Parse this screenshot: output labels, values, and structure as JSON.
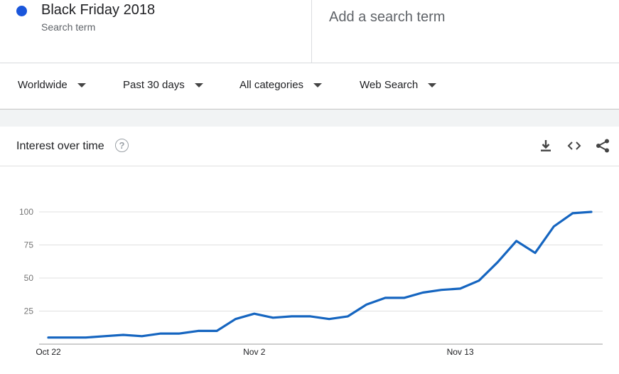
{
  "search_term": {
    "name": "Black Friday 2018",
    "subtitle": "Search term",
    "color": "#1a56db"
  },
  "add_term": {
    "placeholder": "Add a search term"
  },
  "filters": [
    {
      "label": "Worldwide"
    },
    {
      "label": "Past 30 days"
    },
    {
      "label": "All categories"
    },
    {
      "label": "Web Search"
    }
  ],
  "card": {
    "title": "Interest over time",
    "help_glyph": "?",
    "tools": [
      "download-icon",
      "embed-icon",
      "share-icon"
    ]
  },
  "chart_data": {
    "type": "line",
    "title": "",
    "xlabel": "",
    "ylabel": "",
    "ylim": [
      0,
      100
    ],
    "yticks": [
      25,
      50,
      75,
      100
    ],
    "grid": true,
    "line_color": "#1565c0",
    "x_labels": [
      {
        "date": "2018-10-22",
        "label": "Oct 22"
      },
      {
        "date": "2018-11-02",
        "label": "Nov 2"
      },
      {
        "date": "2018-11-13",
        "label": "Nov 13"
      }
    ],
    "x": [
      "2018-10-22",
      "2018-10-23",
      "2018-10-24",
      "2018-10-25",
      "2018-10-26",
      "2018-10-27",
      "2018-10-28",
      "2018-10-29",
      "2018-10-30",
      "2018-10-31",
      "2018-11-01",
      "2018-11-02",
      "2018-11-03",
      "2018-11-04",
      "2018-11-05",
      "2018-11-06",
      "2018-11-07",
      "2018-11-08",
      "2018-11-09",
      "2018-11-10",
      "2018-11-11",
      "2018-11-12",
      "2018-11-13",
      "2018-11-14",
      "2018-11-15",
      "2018-11-16",
      "2018-11-17",
      "2018-11-18",
      "2018-11-19",
      "2018-11-20"
    ],
    "series": [
      {
        "values": [
          5,
          5,
          5,
          6,
          7,
          6,
          8,
          8,
          10,
          10,
          19,
          23,
          20,
          21,
          21,
          19,
          21,
          30,
          35,
          35,
          39,
          41,
          42,
          48,
          62,
          78,
          69,
          89,
          99,
          100
        ]
      }
    ]
  }
}
